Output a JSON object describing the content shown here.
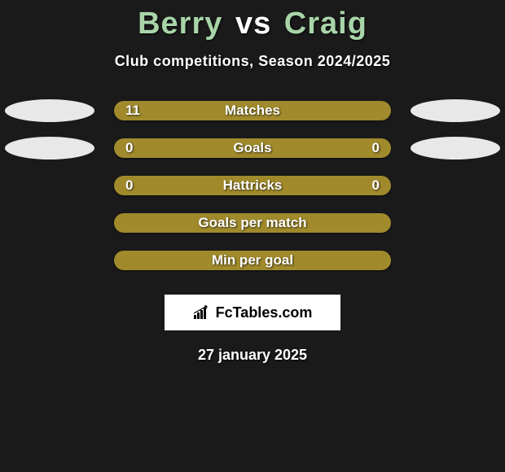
{
  "title": {
    "player1": "Berry",
    "vs": "vs",
    "player2": "Craig",
    "p1_color": "#a8d5a8",
    "p2_color": "#a8d5a8"
  },
  "subtitle": "Club competitions, Season 2024/2025",
  "bar_color": "#a08a2c",
  "ellipse_colors": {
    "row0_left": "#e8e8e8",
    "row0_right": "#e8e8e8",
    "row1_left": "#e8e8e8",
    "row1_right": "#e8e8e8"
  },
  "rows": [
    {
      "label": "Matches",
      "left": "11",
      "right": "",
      "show_left_ellipse": true,
      "show_right_ellipse": true
    },
    {
      "label": "Goals",
      "left": "0",
      "right": "0",
      "show_left_ellipse": true,
      "show_right_ellipse": true
    },
    {
      "label": "Hattricks",
      "left": "0",
      "right": "0",
      "show_left_ellipse": false,
      "show_right_ellipse": false
    },
    {
      "label": "Goals per match",
      "left": "",
      "right": "",
      "show_left_ellipse": false,
      "show_right_ellipse": false
    },
    {
      "label": "Min per goal",
      "left": "",
      "right": "",
      "show_left_ellipse": false,
      "show_right_ellipse": false
    }
  ],
  "logo": {
    "text": "FcTables.com",
    "icon_name": "bar-chart-icon"
  },
  "date": "27 january 2025",
  "background_color": "#1a1a1a"
}
